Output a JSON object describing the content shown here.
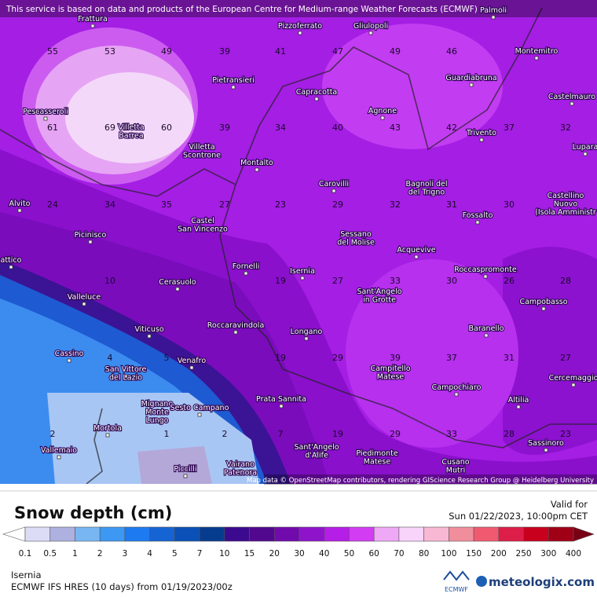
{
  "header": {
    "notice": "This service is based on data and products of the European Centre for Medium-range Weather Forecasts (ECMWF)",
    "attribution": "Map data © OpenStreetMap contributors, rendering GIScience Research Group @ Heidelberg University"
  },
  "map": {
    "towns": [
      [
        "Frattura"
      ],
      [
        "Pizzoferrato"
      ],
      [
        "Gliulopoli"
      ],
      [
        "Palmoli"
      ],
      [
        "Montemitro"
      ],
      [
        "Pietransieri"
      ],
      [
        "Capracotta"
      ],
      [
        "Guardiabruna"
      ],
      [
        "Castelmauro"
      ],
      [
        "Pescasseroli"
      ],
      [
        "Villetta",
        "Barrea"
      ],
      [
        "Agnone"
      ],
      [
        "Trivento"
      ],
      [
        "Lupara"
      ],
      [
        "Villetta",
        "Scontrone"
      ],
      [
        "Montalto"
      ],
      [
        "Carovilli"
      ],
      [
        "Bagnoli del",
        "del Trigno"
      ],
      [
        "Castellino",
        "Nuovo",
        "(Isola Amministr"
      ],
      [
        "Alvito"
      ],
      [
        "Castel",
        "San Vincenzo"
      ],
      [
        "Fossalto"
      ],
      [
        "Picinisco"
      ],
      [
        "Sessano",
        "del Molise"
      ],
      [
        "Acquevive"
      ],
      [
        "Fornelli"
      ],
      [
        "Isernia"
      ],
      [
        "Roccaspromonte"
      ],
      [
        "attico"
      ],
      [
        "Cerasuolo"
      ],
      [
        "Campobasso"
      ],
      [
        "Valleluce"
      ],
      [
        "Sant'Angelo",
        "in Grotte"
      ],
      [
        "Viticuso"
      ],
      [
        "Roccaravindola"
      ],
      [
        "Longano"
      ],
      [
        "Baranello"
      ],
      [
        "Cassino"
      ],
      [
        "San Vittore",
        "del Lazio"
      ],
      [
        "Venafro"
      ],
      [
        "Campitello",
        "Matese"
      ],
      [
        "Cercemaggio"
      ],
      [
        "Campochiaro"
      ],
      [
        "Prata Sannita"
      ],
      [
        "Mignano",
        "Monte",
        "Lungo"
      ],
      [
        "Sesto Campano"
      ],
      [
        "Altilia"
      ],
      [
        "Mortola"
      ],
      [
        "Vallemaio"
      ],
      [
        "Sant'Angelo",
        "d'Alife"
      ],
      [
        "Sassinoro"
      ],
      [
        "Piedimonte",
        "Matese"
      ],
      [
        "Cusano",
        "Mutri"
      ],
      [
        "Piccilli"
      ],
      [
        "Vairano",
        "Patenora"
      ]
    ],
    "values": [
      55,
      53,
      49,
      39,
      41,
      47,
      49,
      46,
      61,
      69,
      60,
      39,
      34,
      40,
      43,
      42,
      37,
      32,
      24,
      34,
      35,
      27,
      23,
      29,
      32,
      31,
      30,
      10,
      19,
      27,
      33,
      30,
      26,
      28,
      4,
      5,
      19,
      29,
      39,
      37,
      31,
      27,
      2,
      1,
      2,
      7,
      19,
      29,
      33,
      28,
      23
    ]
  },
  "legend": {
    "title": "Snow depth (cm)",
    "valid_label": "Valid for",
    "valid_time": "Sun 01/22/2023, 10:00pm CET",
    "ticks": [
      0.1,
      0.5,
      1,
      2,
      3,
      4,
      5,
      7,
      10,
      15,
      20,
      30,
      40,
      50,
      60,
      70,
      80,
      100,
      150,
      200,
      250,
      300,
      400
    ],
    "colors": [
      "#dcdcf6",
      "#aeb0e0",
      "#78b6f2",
      "#3c98f2",
      "#1e7af0",
      "#1664d4",
      "#0a50b6",
      "#063c8e",
      "#3c0a8e",
      "#52088e",
      "#700aac",
      "#8e14ca",
      "#b41ee6",
      "#d23cf2",
      "#eea8f6",
      "#f8d4fa",
      "#f8b8d4",
      "#f08e9c",
      "#f05a70",
      "#dc1e48",
      "#c8001e",
      "#a00016",
      "#780014"
    ]
  },
  "footer": {
    "location": "Isernia",
    "model": "ECMWF IFS HRES (10 days) from 01/19/2023/00z",
    "ecmwf": "ECMWF",
    "brand": "meteologix.com"
  }
}
